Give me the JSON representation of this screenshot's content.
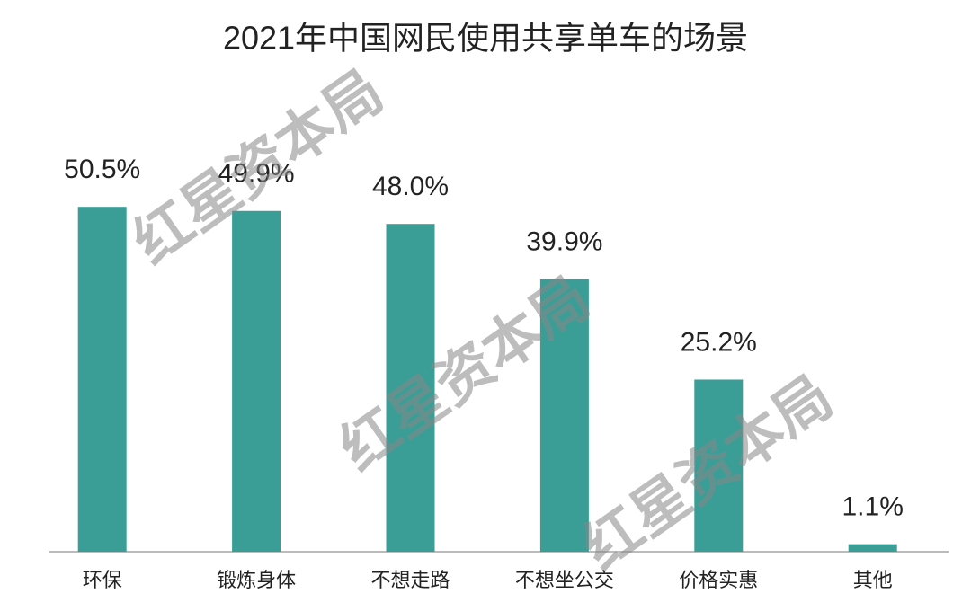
{
  "chart_data": {
    "type": "bar",
    "title": "2021年中国网民使用共享单车的场景",
    "categories": [
      "环保",
      "锻炼身体",
      "不想走路",
      "不想坐公交",
      "价格实惠",
      "其他"
    ],
    "values": [
      50.5,
      49.9,
      48.0,
      39.9,
      25.2,
      1.1
    ],
    "value_labels": [
      "50.5%",
      "49.9%",
      "48.0%",
      "39.9%",
      "25.2%",
      "1.1%"
    ],
    "color": "#3a9e96",
    "watermark": "红星资本局"
  }
}
